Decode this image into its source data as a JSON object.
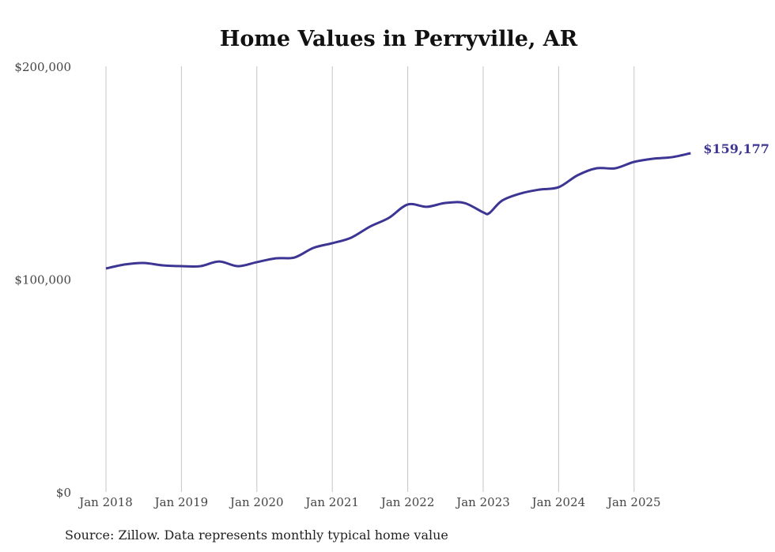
{
  "chart_data": {
    "type": "line",
    "title": "Home Values in Perryville, AR",
    "xlabel": "",
    "ylabel": "",
    "ylim": [
      0,
      200000
    ],
    "yticks": [
      0,
      100000,
      200000
    ],
    "ytick_labels": [
      "$0",
      "$100,000",
      "$200,000"
    ],
    "xticks": [
      "Jan 2018",
      "Jan 2019",
      "Jan 2020",
      "Jan 2021",
      "Jan 2022",
      "Jan 2023",
      "Jan 2024",
      "Jan 2025"
    ],
    "grid": "vertical",
    "line_color": "#3d3593",
    "series": [
      {
        "name": "Typical home value",
        "x": [
          2018.0,
          2018.25,
          2018.5,
          2018.75,
          2019.0,
          2019.25,
          2019.5,
          2019.75,
          2020.0,
          2020.25,
          2020.5,
          2020.75,
          2021.0,
          2021.25,
          2021.5,
          2021.75,
          2022.0,
          2022.25,
          2022.5,
          2022.75,
          2023.0,
          2023.08,
          2023.25,
          2023.5,
          2023.75,
          2024.0,
          2024.25,
          2024.5,
          2024.75,
          2025.0,
          2025.25,
          2025.5,
          2025.75
        ],
        "values": [
          105000,
          106900,
          107600,
          106500,
          106100,
          106100,
          108300,
          106100,
          108000,
          109800,
          110200,
          114700,
          116900,
          119500,
          124700,
          128800,
          135100,
          134000,
          135800,
          135800,
          131400,
          131000,
          136900,
          140300,
          142100,
          143200,
          148800,
          152100,
          152100,
          155100,
          156600,
          157300,
          159177
        ]
      }
    ],
    "end_label": "$159,177"
  },
  "source": "Source: Zillow. Data represents monthly typical home value"
}
